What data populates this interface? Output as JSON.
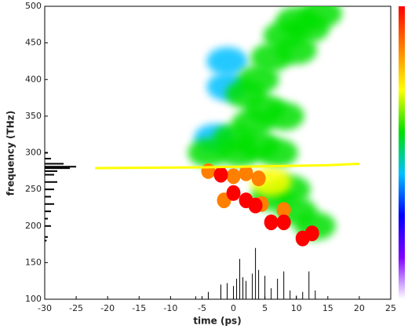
{
  "chart_data": {
    "type": "spectrogram",
    "x_label": "time (ps)",
    "y_label": "frequency (THz)",
    "xlim": [
      -30,
      25
    ],
    "ylim": [
      100,
      500
    ],
    "xticks": [
      -30,
      -25,
      -20,
      -15,
      -10,
      -5,
      0,
      5,
      10,
      15,
      20,
      25
    ],
    "yticks": [
      100,
      150,
      200,
      250,
      300,
      350,
      400,
      450,
      500
    ],
    "colormap": [
      "#ffffff",
      "#8000ff",
      "#0000ff",
      "#00c0ff",
      "#00e000",
      "#ffff00",
      "#ff8000",
      "#ff0000"
    ],
    "spots": {
      "x": [
        -4,
        0,
        3,
        5,
        2,
        4,
        6,
        8,
        10,
        12,
        14,
        -3,
        1,
        4,
        7,
        9,
        10,
        13,
        6,
        -1,
        -1,
        10,
        8,
        -4,
        -2,
        0,
        2,
        4,
        6,
        -1.5,
        4.5,
        8,
        0,
        2,
        3.5,
        6,
        8,
        11,
        12.5
      ],
      "y": [
        300,
        320,
        340,
        360,
        380,
        400,
        430,
        460,
        480,
        470,
        490,
        320,
        300,
        310,
        300,
        250,
        220,
        200,
        240,
        390,
        425,
        440,
        350,
        275,
        270,
        268,
        272,
        265,
        260,
        235,
        230,
        222,
        245,
        235,
        228,
        205,
        205,
        183,
        190
      ],
      "level": [
        0.5,
        0.5,
        0.5,
        0.5,
        0.5,
        0.5,
        0.5,
        0.5,
        0.5,
        0.5,
        0.6,
        0.4,
        0.5,
        0.5,
        0.5,
        0.5,
        0.5,
        0.5,
        0.5,
        0.4,
        0.4,
        0.5,
        0.5,
        0.9,
        1,
        0.9,
        0.8,
        0.8,
        0.7,
        0.9,
        0.9,
        0.9,
        1,
        1,
        1,
        1,
        1,
        1,
        1
      ]
    },
    "ridge": {
      "x": [
        -22,
        -6,
        15,
        20
      ],
      "y": [
        279,
        280,
        283,
        285
      ]
    },
    "temporal_trace": {
      "x": [
        -6,
        -4,
        -2,
        -1,
        0,
        0.5,
        1,
        1.5,
        2,
        3,
        3.5,
        4,
        5,
        6,
        7,
        8,
        9,
        10,
        11,
        12,
        13
      ],
      "values": [
        104,
        110,
        120,
        122,
        118,
        128,
        155,
        130,
        125,
        135,
        170,
        140,
        132,
        115,
        128,
        138,
        112,
        105,
        110,
        138,
        112
      ]
    },
    "spectral_trace": {
      "y": [
        300,
        292,
        285,
        281,
        279,
        275,
        270,
        260,
        250,
        240,
        230,
        220,
        210,
        200,
        185,
        180
      ],
      "x": [
        -29.5,
        -29,
        -27,
        -25,
        -26,
        -28,
        -28.5,
        -28,
        -28.5,
        -29,
        -28.5,
        -29,
        -29.5,
        -29,
        -29.5,
        -29.7
      ]
    }
  }
}
